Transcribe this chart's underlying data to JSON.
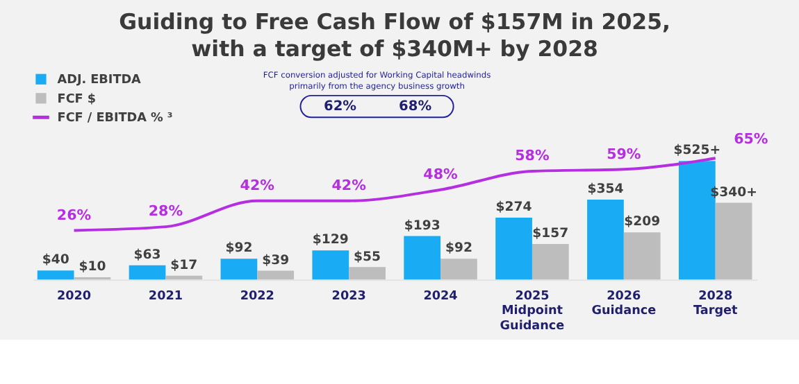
{
  "chart_data": {
    "type": "bar",
    "title": [
      "Guiding to Free Cash Flow of $157M in 2025,",
      "with a target of $340M+ by 2028"
    ],
    "categories": [
      "2020",
      "2021",
      "2022",
      "2023",
      "2024",
      "2025\nMidpoint\nGuidance",
      "2026\nGuidance",
      "2028\nTarget"
    ],
    "series": [
      {
        "name": "ADJ. EBITDA",
        "color": "#1aabf5",
        "values": [
          40,
          63,
          92,
          129,
          193,
          274,
          354,
          525
        ],
        "value_labels": [
          "$40",
          "$63",
          "$92",
          "$129",
          "$193",
          "$274",
          "$354",
          "$525+"
        ]
      },
      {
        "name": "FCF $",
        "color": "#bdbdbd",
        "values": [
          10,
          17,
          39,
          55,
          92,
          157,
          209,
          340
        ],
        "value_labels": [
          "$10",
          "$17",
          "$39",
          "$55",
          "$92",
          "$157",
          "$209",
          "$340+"
        ]
      },
      {
        "name": "FCF / EBITDA % ³",
        "type": "line",
        "axis": "y2",
        "color": "#b52ee0",
        "values": [
          26,
          28,
          42,
          42,
          48,
          58,
          59,
          65
        ],
        "value_labels": [
          "26%",
          "28%",
          "42%",
          "42%",
          "48%",
          "58%",
          "59%",
          "65%"
        ]
      }
    ],
    "tick_labels": "x",
    "grid": false,
    "legend": "top left",
    "data_labels": true,
    "annotations": [
      "FCF conversion adjusted for Working Capital headwinds primarily from the agency business growth",
      "62%",
      "68%"
    ]
  }
}
